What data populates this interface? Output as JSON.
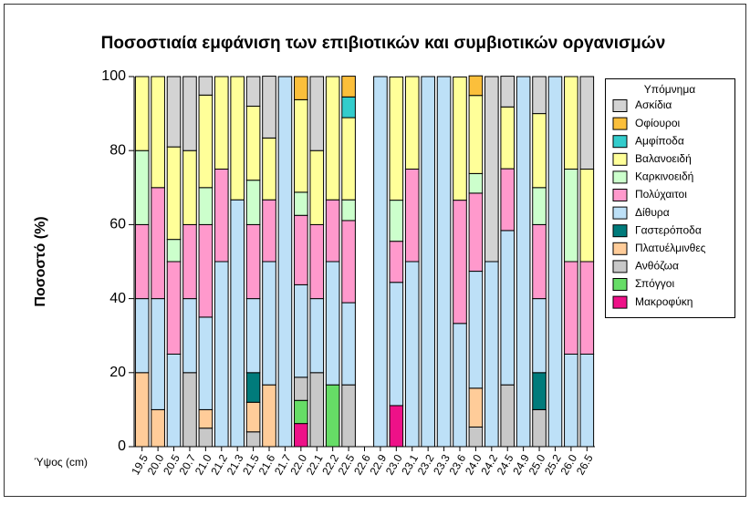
{
  "chart_data": {
    "type": "stacked_bar",
    "title": "Ποσοστιαία εμφάνιση των επιβιοτικών και συμβιοτικών οργανισμών",
    "ylabel": "Ποσοστό (%)",
    "xlabel": "Ύψος (cm)",
    "legend_title": "Υπόμνημα",
    "categories": [
      "19.5",
      "20.0",
      "20.5",
      "20.7",
      "21.0",
      "21.2",
      "21.3",
      "21.5",
      "21.6",
      "21.7",
      "22.0",
      "22.1",
      "22.2",
      "22.5",
      "22.6",
      "22.9",
      "23.0",
      "23.1",
      "23.2",
      "23.3",
      "23.6",
      "24.0",
      "24.2",
      "24.5",
      "24.9",
      "25.0",
      "25.2",
      "26.0",
      "26.5"
    ],
    "ylim": [
      0,
      100
    ],
    "yticks": [
      0,
      20,
      40,
      60,
      80,
      100
    ],
    "series": [
      {
        "name": "Μακροφύκη",
        "color": "#ee1188",
        "values": [
          0,
          0,
          0,
          0,
          0,
          0,
          0,
          0,
          0,
          0,
          6.25,
          0,
          0,
          0,
          0,
          0,
          11.1,
          0,
          0,
          0,
          0,
          0,
          0,
          0,
          0,
          0,
          0,
          0,
          0
        ]
      },
      {
        "name": "Σπόγγοι",
        "color": "#66dd66",
        "values": [
          0,
          0,
          0,
          0,
          0,
          0,
          0,
          0,
          0,
          0,
          6.25,
          0,
          16.7,
          0,
          0,
          0,
          0,
          0,
          0,
          0,
          0,
          0,
          0,
          0,
          0,
          0,
          0,
          0,
          0
        ]
      },
      {
        "name": "Ανθόζωα",
        "color": "#c8c8c8",
        "values": [
          0,
          0,
          0,
          20,
          5,
          0,
          0,
          4,
          0,
          0,
          6.25,
          20,
          0,
          16.7,
          0,
          0,
          0,
          0,
          0,
          0,
          0,
          5.3,
          0,
          16.7,
          0,
          10,
          0,
          0,
          0
        ]
      },
      {
        "name": "Πλατυέλμινθες",
        "color": "#ffcc99",
        "values": [
          20,
          10,
          0,
          0,
          5,
          0,
          0,
          8,
          16.7,
          0,
          0,
          0,
          0,
          0,
          0,
          0,
          0,
          0,
          0,
          0,
          0,
          10.5,
          0,
          0,
          0,
          0,
          0,
          0,
          0
        ]
      },
      {
        "name": "Γαστερόποδα",
        "color": "#007b7b",
        "values": [
          0,
          0,
          0,
          0,
          0,
          0,
          0,
          8,
          0,
          0,
          0,
          0,
          0,
          0,
          0,
          0,
          0,
          0,
          0,
          0,
          0,
          0,
          0,
          0,
          0,
          10,
          0,
          0,
          0
        ]
      },
      {
        "name": "Δίθυρα",
        "color": "#bde0f7",
        "values": [
          20,
          30,
          25,
          20,
          25,
          50,
          66.7,
          20,
          33.3,
          100,
          25,
          20,
          33.3,
          22.2,
          0,
          100,
          33.3,
          50,
          100,
          100,
          33.3,
          31.6,
          50,
          41.7,
          100,
          20,
          100,
          25,
          25
        ]
      },
      {
        "name": "Πολύχαιτοι",
        "color": "#ff99cc",
        "values": [
          20,
          30,
          25,
          20,
          25,
          25,
          0,
          20,
          16.7,
          0,
          18.75,
          20,
          16.7,
          22.2,
          0,
          0,
          11.1,
          25,
          0,
          0,
          33.3,
          21.1,
          0,
          16.7,
          0,
          20,
          0,
          25,
          25
        ]
      },
      {
        "name": "Καρκινοειδή",
        "color": "#ccffcc",
        "values": [
          20,
          0,
          6,
          0,
          10,
          0,
          0,
          12,
          0,
          0,
          6.25,
          0,
          0,
          5.6,
          0,
          0,
          11.1,
          0,
          0,
          0,
          0,
          5.3,
          0,
          0,
          0,
          10,
          0,
          25,
          0
        ]
      },
      {
        "name": "Βαλανοειδή",
        "color": "#ffff99",
        "values": [
          20,
          30,
          25,
          20,
          25,
          25,
          33.3,
          20,
          16.7,
          0,
          25,
          20,
          33.3,
          22.2,
          0,
          0,
          33.3,
          25,
          0,
          0,
          33.3,
          21.1,
          0,
          16.7,
          0,
          20,
          0,
          25,
          25
        ]
      },
      {
        "name": "Αμφίποδα",
        "color": "#33cccc",
        "values": [
          0,
          0,
          0,
          0,
          0,
          0,
          0,
          0,
          0,
          0,
          0,
          0,
          0,
          5.6,
          0,
          0,
          0,
          0,
          0,
          0,
          0,
          0,
          0,
          0,
          0,
          0,
          0,
          0,
          0
        ]
      },
      {
        "name": "Οφίουροι",
        "color": "#fbbf3b",
        "values": [
          0,
          0,
          0,
          0,
          0,
          0,
          0,
          0,
          0,
          0,
          6.25,
          0,
          0,
          5.6,
          0,
          0,
          0,
          0,
          0,
          0,
          0,
          5.3,
          0,
          0,
          0,
          0,
          0,
          0,
          0
        ]
      },
      {
        "name": "Ασκίδια",
        "color": "#d3d3d3",
        "values": [
          0,
          0,
          19,
          20,
          5,
          0,
          0,
          8,
          16.7,
          0,
          0,
          20,
          0,
          0,
          0,
          0,
          0,
          0,
          0,
          0,
          0,
          0,
          50,
          8.3,
          0,
          10,
          0,
          0,
          25
        ]
      }
    ]
  }
}
